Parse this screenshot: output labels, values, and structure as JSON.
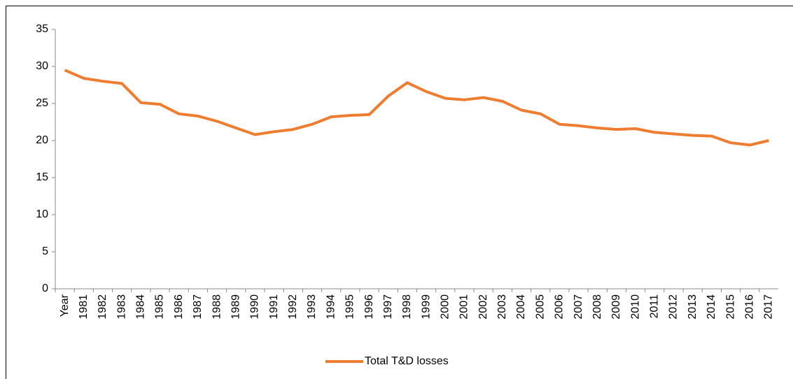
{
  "chart_data": {
    "type": "line",
    "categories": [
      "Year",
      "1981",
      "1982",
      "1983",
      "1984",
      "1985",
      "1986",
      "1987",
      "1988",
      "1989",
      "1990",
      "1991",
      "1992",
      "1993",
      "1994",
      "1995",
      "1996",
      "1997",
      "1998",
      "1999",
      "2000",
      "2001",
      "2002",
      "2003",
      "2004",
      "2005",
      "2006",
      "2007",
      "2008",
      "2009",
      "2010",
      "2011",
      "2012",
      "2013",
      "2014",
      "2015",
      "2016",
      "2017"
    ],
    "series": [
      {
        "name": "Total T&D losses",
        "color": "#ed7d31",
        "values": [
          29.5,
          28.4,
          28.0,
          27.7,
          25.1,
          24.9,
          23.6,
          23.3,
          22.6,
          21.7,
          20.8,
          21.2,
          21.5,
          22.2,
          23.2,
          23.4,
          23.5,
          26.0,
          27.8,
          26.6,
          25.7,
          25.5,
          25.8,
          25.3,
          24.1,
          23.6,
          22.2,
          22.0,
          21.7,
          21.5,
          21.6,
          21.1,
          20.9,
          20.7,
          20.6,
          19.7,
          19.4,
          20.0
        ]
      }
    ],
    "ylim": [
      0,
      35
    ],
    "yticks": [
      0,
      5,
      10,
      15,
      20,
      25,
      30,
      35
    ],
    "legend": "bottom"
  }
}
